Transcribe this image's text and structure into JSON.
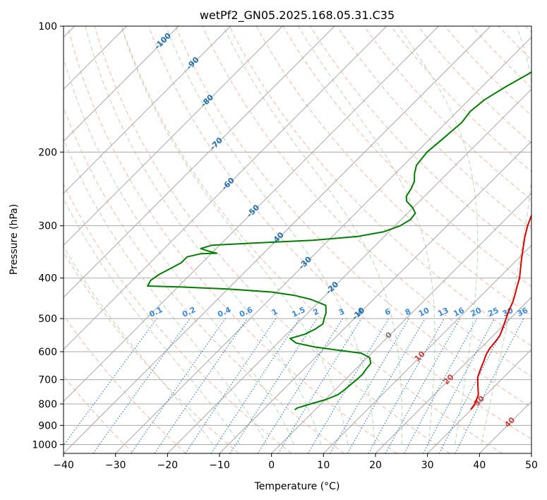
{
  "chart_data": {
    "type": "line",
    "title": "wetPf2_GN05.2025.168.05.31.C35",
    "xlabel": "Temperature (°C)",
    "ylabel": "Pressure (hPa)",
    "xlim": [
      -40,
      50
    ],
    "ylim": [
      1050,
      100
    ],
    "y_scale": "log",
    "x_ticks": [
      -40,
      -30,
      -20,
      -10,
      0,
      10,
      20,
      30,
      40,
      50
    ],
    "y_ticks": [
      100,
      200,
      300,
      400,
      500,
      600,
      700,
      800,
      900,
      1000
    ],
    "grid": true,
    "skew": "temperature isotherms skewed 45 degrees",
    "series": [
      {
        "color": "#e00000",
        "points": [
          [
            29.9,
            825
          ],
          [
            29.6,
            800
          ],
          [
            28.5,
            760
          ],
          [
            26.5,
            720
          ],
          [
            25.0,
            690
          ],
          [
            24.0,
            660
          ],
          [
            23.2,
            635
          ],
          [
            22.3,
            610
          ],
          [
            21.8,
            590
          ],
          [
            21.6,
            570
          ],
          [
            21.3,
            550
          ],
          [
            20.3,
            525
          ],
          [
            19.2,
            500
          ],
          [
            18.2,
            478
          ],
          [
            17.4,
            458
          ],
          [
            16.3,
            438
          ],
          [
            15.2,
            420
          ],
          [
            14.0,
            400
          ],
          [
            12.4,
            380
          ],
          [
            10.7,
            360
          ],
          [
            9.0,
            340
          ],
          [
            7.2,
            320
          ],
          [
            5.5,
            300
          ],
          [
            4.0,
            280
          ],
          [
            2.5,
            260
          ],
          [
            1.0,
            240
          ],
          [
            -0.3,
            220
          ],
          [
            -1.0,
            200
          ],
          [
            -1.5,
            180
          ],
          [
            -1.8,
            160
          ],
          [
            -2.8,
            150
          ],
          [
            -4.5,
            140
          ],
          [
            -6.5,
            130
          ],
          [
            -8.0,
            122
          ],
          [
            -8.5,
            115
          ],
          [
            -9.0,
            108
          ],
          [
            -9.7,
            100
          ]
        ]
      },
      {
        "color": "#008000",
        "points": [
          [
            -3.9,
            826
          ],
          [
            -3.8,
            818
          ],
          [
            -2.0,
            800
          ],
          [
            0.2,
            780
          ],
          [
            1.5,
            760
          ],
          [
            1.8,
            740
          ],
          [
            2.0,
            720
          ],
          [
            2.2,
            700
          ],
          [
            2.3,
            680
          ],
          [
            2.0,
            660
          ],
          [
            1.8,
            640
          ],
          [
            0.5,
            620
          ],
          [
            -2.0,
            605
          ],
          [
            -7.0,
            595
          ],
          [
            -12.0,
            585
          ],
          [
            -16.5,
            572
          ],
          [
            -18.5,
            558
          ],
          [
            -16.5,
            545
          ],
          [
            -15.5,
            530
          ],
          [
            -15.0,
            515
          ],
          [
            -15.8,
            500
          ],
          [
            -16.5,
            485
          ],
          [
            -18.0,
            465
          ],
          [
            -22.0,
            450
          ],
          [
            -26.0,
            440
          ],
          [
            -31.0,
            432
          ],
          [
            -40.0,
            425
          ],
          [
            -50.0,
            420
          ],
          [
            -56.0,
            418
          ],
          [
            -56.5,
            405
          ],
          [
            -56.0,
            392
          ],
          [
            -55.0,
            380
          ],
          [
            -54.0,
            368
          ],
          [
            -54.0,
            356
          ],
          [
            -52.0,
            350
          ],
          [
            -49.0,
            349
          ],
          [
            -51.0,
            345
          ],
          [
            -53.0,
            340
          ],
          [
            -51.5,
            334
          ],
          [
            -44.0,
            330
          ],
          [
            -33.0,
            325
          ],
          [
            -25.0,
            318
          ],
          [
            -21.0,
            310
          ],
          [
            -19.0,
            300
          ],
          [
            -18.2,
            290
          ],
          [
            -18.5,
            280
          ],
          [
            -20.0,
            272
          ],
          [
            -22.5,
            262
          ],
          [
            -23.5,
            255
          ],
          [
            -24.0,
            245
          ],
          [
            -24.8,
            235
          ],
          [
            -26.3,
            225
          ],
          [
            -27.5,
            215
          ],
          [
            -28.0,
            200
          ],
          [
            -27.5,
            185
          ],
          [
            -27.0,
            170
          ],
          [
            -27.5,
            160
          ],
          [
            -27.0,
            150
          ],
          [
            -25.5,
            140
          ],
          [
            -23.5,
            130
          ],
          [
            -22.0,
            120
          ],
          [
            -20.0,
            112
          ],
          [
            -18.5,
            105
          ],
          [
            -17.7,
            100
          ]
        ]
      }
    ],
    "isotherm_labels": [
      "-100",
      "-90",
      "-80",
      "-70",
      "-60",
      "-50",
      "-40",
      "-30",
      "-20",
      "-10",
      "0",
      "10",
      "20",
      "30",
      "40"
    ],
    "mixing_ratio_labels": [
      "0.1",
      "0.2",
      "0.4",
      "0.6",
      "1",
      "1.5",
      "2",
      "3",
      "4",
      "6",
      "8",
      "10",
      "13",
      "16",
      "20",
      "25",
      "30",
      "36"
    ]
  }
}
